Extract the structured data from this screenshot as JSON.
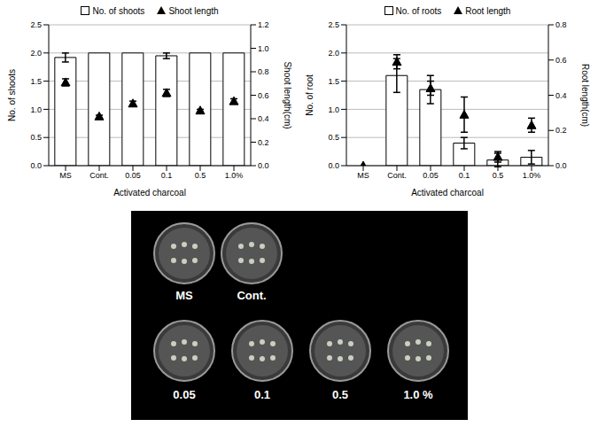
{
  "chart_data": [
    {
      "type": "bar",
      "x_label": "Activated charcoal",
      "y_label": "No. of shoots",
      "y2_label": "Shoot length(cm)",
      "categories": [
        "MS",
        "Cont.",
        "0.05",
        "0.1",
        "0.5",
        "1.0%"
      ],
      "ylim": [
        0,
        2.5
      ],
      "yticks": [
        {
          "value": 0,
          "label": "0.0"
        },
        0.5,
        {
          "value": 1,
          "label": "1.0"
        },
        1.5,
        {
          "value": 2,
          "label": "2.0"
        },
        2.5
      ],
      "y2lim": [
        0,
        1.2
      ],
      "y2ticks": [
        {
          "value": 0,
          "label": "0.0"
        },
        0.2,
        0.4,
        0.6,
        0.8,
        {
          "value": 1,
          "label": "1.0"
        },
        1.2
      ],
      "grid": true,
      "legend": "top",
      "series": [
        {
          "name": "No. of shoots",
          "type": "bar",
          "color": "#ffffff",
          "values": [
            1.92,
            2.0,
            2.0,
            1.95,
            2.0,
            2.0
          ],
          "errors": [
            0.08,
            0,
            0,
            0.05,
            0,
            0
          ]
        },
        {
          "name": "Shoot length",
          "type": "scatter",
          "marker": "triangle",
          "color": "#000000",
          "axis": "y2",
          "values": [
            0.71,
            0.42,
            0.53,
            0.62,
            0.47,
            0.55
          ],
          "errors": [
            0.03,
            0.01,
            0.02,
            0.03,
            0.01,
            0.02
          ]
        }
      ]
    },
    {
      "type": "bar",
      "x_label": "Activated charcoal",
      "y_label": "No. of root",
      "y2_label": "Root length(cm)",
      "categories": [
        "MS",
        "Cont.",
        "0.05",
        "0.1",
        "0.5",
        "1.0%"
      ],
      "ylim": [
        0,
        2.5
      ],
      "yticks": [
        {
          "value": 0,
          "label": "0.0"
        },
        0.5,
        {
          "value": 1,
          "label": "1.0"
        },
        1.5,
        {
          "value": 2,
          "label": "2.0"
        },
        2.5
      ],
      "y2lim": [
        0,
        0.8
      ],
      "y2ticks": [
        {
          "value": 0,
          "label": "0.0"
        },
        0.2,
        0.4,
        0.6,
        0.8
      ],
      "grid": true,
      "legend": "top",
      "series": [
        {
          "name": "No. of roots",
          "type": "bar",
          "color": "#ffffff",
          "values": [
            0,
            1.6,
            1.35,
            0.4,
            0.1,
            0.15
          ],
          "errors": [
            0,
            0.3,
            0.25,
            0.1,
            0.12,
            0.12
          ]
        },
        {
          "name": "Root length",
          "type": "scatter",
          "marker": "triangle",
          "color": "#000000",
          "axis": "y2",
          "values": [
            0,
            0.59,
            0.44,
            0.29,
            0.05,
            0.23
          ],
          "errors": [
            0,
            0.04,
            0.04,
            0.1,
            0.03,
            0.04
          ]
        }
      ]
    }
  ],
  "photo": {
    "dishes": [
      "MS",
      "Cont.",
      "0.05",
      "0.1",
      "0.5",
      "1.0 %"
    ]
  }
}
